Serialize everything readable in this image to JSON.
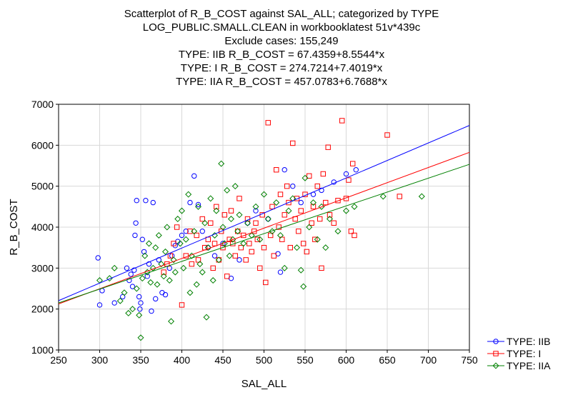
{
  "titles": {
    "line1": "Scatterplot of R_B_COST against SAL_ALL; categorized by TYPE",
    "line2": "LOG_PUBLIC.SMALL.CLEAN in workbooklatest 51v*439c",
    "line3": "Exclude cases: 155,249",
    "line4": "TYPE: IIB R_B_COST = 67.4359+8.5544*x",
    "line5": "TYPE: I R_B_COST = 274.7214+7.4019*x",
    "line6": "TYPE: IIA R_B_COST = 457.0783+6.7688*x"
  },
  "chart_data": {
    "type": "scatter",
    "xlabel": "SAL_ALL",
    "ylabel": "R_B_COST",
    "xlim": [
      250,
      750
    ],
    "ylim": [
      1000,
      7000
    ],
    "xticks": [
      "250",
      "300",
      "350",
      "400",
      "450",
      "500",
      "550",
      "600",
      "650",
      "700",
      "750"
    ],
    "yticks": [
      "1000",
      "2000",
      "3000",
      "4000",
      "5000",
      "6000",
      "7000"
    ],
    "grid": true,
    "legend_position": "bottom-right",
    "series": [
      {
        "name": "TYPE: IIB",
        "color": "#0000ff",
        "marker": "circle",
        "fit": {
          "intercept": 67.4359,
          "slope": 8.5544
        },
        "points": [
          [
            298,
            3250
          ],
          [
            300,
            2100
          ],
          [
            303,
            2450
          ],
          [
            318,
            2150
          ],
          [
            328,
            2300
          ],
          [
            333,
            3000
          ],
          [
            336,
            2700
          ],
          [
            338,
            2850
          ],
          [
            340,
            2550
          ],
          [
            342,
            2950
          ],
          [
            343,
            3800
          ],
          [
            344,
            4100
          ],
          [
            345,
            4650
          ],
          [
            348,
            2300
          ],
          [
            349,
            2000
          ],
          [
            350,
            2150
          ],
          [
            352,
            3700
          ],
          [
            354,
            3400
          ],
          [
            356,
            4650
          ],
          [
            358,
            2800
          ],
          [
            360,
            3100
          ],
          [
            363,
            1950
          ],
          [
            365,
            4600
          ],
          [
            368,
            2250
          ],
          [
            372,
            3200
          ],
          [
            376,
            2400
          ],
          [
            380,
            2350
          ],
          [
            385,
            3000
          ],
          [
            388,
            3300
          ],
          [
            392,
            3550
          ],
          [
            395,
            3650
          ],
          [
            400,
            3800
          ],
          [
            405,
            3900
          ],
          [
            410,
            4600
          ],
          [
            415,
            5250
          ],
          [
            420,
            4550
          ],
          [
            425,
            3900
          ],
          [
            432,
            3500
          ],
          [
            440,
            3300
          ],
          [
            450,
            3600
          ],
          [
            460,
            2750
          ],
          [
            470,
            3200
          ],
          [
            480,
            4100
          ],
          [
            490,
            4400
          ],
          [
            505,
            4200
          ],
          [
            517,
            3350
          ],
          [
            520,
            2900
          ],
          [
            525,
            5400
          ],
          [
            535,
            5000
          ],
          [
            545,
            4600
          ],
          [
            560,
            4800
          ],
          [
            570,
            4900
          ],
          [
            585,
            5100
          ],
          [
            600,
            5300
          ],
          [
            612,
            5400
          ]
        ]
      },
      {
        "name": "TYPE: I",
        "color": "#ff0000",
        "marker": "square",
        "fit": {
          "intercept": 274.7214,
          "slope": 7.4019
        },
        "points": [
          [
            378,
            2900
          ],
          [
            382,
            3100
          ],
          [
            386,
            3300
          ],
          [
            390,
            3600
          ],
          [
            394,
            4000
          ],
          [
            400,
            2100
          ],
          [
            405,
            3300
          ],
          [
            410,
            3900
          ],
          [
            412,
            3100
          ],
          [
            418,
            3800
          ],
          [
            420,
            3200
          ],
          [
            425,
            4200
          ],
          [
            428,
            3500
          ],
          [
            432,
            3700
          ],
          [
            435,
            4100
          ],
          [
            438,
            3000
          ],
          [
            440,
            3600
          ],
          [
            442,
            4500
          ],
          [
            445,
            3200
          ],
          [
            448,
            3900
          ],
          [
            450,
            3500
          ],
          [
            452,
            4300
          ],
          [
            455,
            2800
          ],
          [
            458,
            3700
          ],
          [
            460,
            4400
          ],
          [
            462,
            3600
          ],
          [
            465,
            3300
          ],
          [
            468,
            3900
          ],
          [
            470,
            4700
          ],
          [
            472,
            3500
          ],
          [
            475,
            3800
          ],
          [
            478,
            3200
          ],
          [
            480,
            4200
          ],
          [
            482,
            3600
          ],
          [
            485,
            3400
          ],
          [
            488,
            3900
          ],
          [
            490,
            4100
          ],
          [
            492,
            3700
          ],
          [
            495,
            3000
          ],
          [
            498,
            4300
          ],
          [
            500,
            3500
          ],
          [
            502,
            2650
          ],
          [
            505,
            6550
          ],
          [
            508,
            3800
          ],
          [
            510,
            4500
          ],
          [
            512,
            3300
          ],
          [
            515,
            5400
          ],
          [
            518,
            4000
          ],
          [
            520,
            4800
          ],
          [
            522,
            3700
          ],
          [
            525,
            4300
          ],
          [
            528,
            5000
          ],
          [
            530,
            4600
          ],
          [
            532,
            3500
          ],
          [
            535,
            6050
          ],
          [
            538,
            4200
          ],
          [
            540,
            4700
          ],
          [
            542,
            3900
          ],
          [
            545,
            4400
          ],
          [
            548,
            3600
          ],
          [
            550,
            4800
          ],
          [
            552,
            3400
          ],
          [
            555,
            5250
          ],
          [
            558,
            4100
          ],
          [
            560,
            4500
          ],
          [
            562,
            3700
          ],
          [
            565,
            5000
          ],
          [
            568,
            4200
          ],
          [
            570,
            3000
          ],
          [
            572,
            5300
          ],
          [
            575,
            4600
          ],
          [
            578,
            5950
          ],
          [
            580,
            4300
          ],
          [
            585,
            4100
          ],
          [
            590,
            4650
          ],
          [
            595,
            6600
          ],
          [
            600,
            4700
          ],
          [
            603,
            5150
          ],
          [
            606,
            3900
          ],
          [
            608,
            5550
          ],
          [
            610,
            3800
          ],
          [
            650,
            6250
          ],
          [
            665,
            4750
          ]
        ]
      },
      {
        "name": "TYPE: IIA",
        "color": "#008000",
        "marker": "diamond",
        "fit": {
          "intercept": 457.0783,
          "slope": 6.7688
        },
        "points": [
          [
            300,
            2700
          ],
          [
            312,
            2750
          ],
          [
            318,
            3000
          ],
          [
            325,
            2200
          ],
          [
            330,
            2400
          ],
          [
            335,
            1900
          ],
          [
            340,
            2000
          ],
          [
            345,
            2500
          ],
          [
            348,
            1850
          ],
          [
            350,
            1300
          ],
          [
            352,
            2750
          ],
          [
            355,
            3300
          ],
          [
            358,
            2900
          ],
          [
            360,
            3600
          ],
          [
            362,
            2650
          ],
          [
            365,
            3000
          ],
          [
            368,
            3500
          ],
          [
            370,
            2600
          ],
          [
            372,
            3800
          ],
          [
            375,
            3100
          ],
          [
            378,
            2800
          ],
          [
            380,
            3400
          ],
          [
            382,
            4000
          ],
          [
            385,
            2700
          ],
          [
            387,
            1700
          ],
          [
            390,
            3200
          ],
          [
            392,
            2900
          ],
          [
            395,
            4200
          ],
          [
            398,
            3600
          ],
          [
            400,
            4400
          ],
          [
            402,
            3000
          ],
          [
            405,
            3700
          ],
          [
            408,
            4800
          ],
          [
            410,
            2400
          ],
          [
            412,
            3300
          ],
          [
            415,
            3900
          ],
          [
            418,
            2600
          ],
          [
            420,
            4500
          ],
          [
            422,
            3100
          ],
          [
            425,
            2900
          ],
          [
            428,
            4100
          ],
          [
            430,
            1800
          ],
          [
            432,
            3500
          ],
          [
            435,
            4700
          ],
          [
            438,
            2700
          ],
          [
            440,
            3800
          ],
          [
            442,
            4400
          ],
          [
            445,
            3200
          ],
          [
            448,
            5550
          ],
          [
            450,
            4000
          ],
          [
            452,
            3600
          ],
          [
            455,
            4900
          ],
          [
            458,
            3300
          ],
          [
            460,
            4200
          ],
          [
            462,
            3700
          ],
          [
            465,
            5000
          ],
          [
            468,
            3900
          ],
          [
            470,
            4300
          ],
          [
            475,
            3600
          ],
          [
            480,
            4100
          ],
          [
            485,
            3800
          ],
          [
            490,
            4500
          ],
          [
            495,
            3700
          ],
          [
            500,
            4800
          ],
          [
            505,
            4200
          ],
          [
            510,
            3900
          ],
          [
            515,
            4600
          ],
          [
            520,
            3800
          ],
          [
            525,
            3000
          ],
          [
            530,
            4400
          ],
          [
            535,
            4700
          ],
          [
            540,
            3500
          ],
          [
            545,
            2950
          ],
          [
            548,
            2550
          ],
          [
            550,
            5200
          ],
          [
            555,
            4000
          ],
          [
            560,
            4600
          ],
          [
            565,
            3700
          ],
          [
            570,
            4500
          ],
          [
            575,
            3500
          ],
          [
            580,
            4200
          ],
          [
            590,
            3900
          ],
          [
            600,
            4400
          ],
          [
            610,
            4500
          ],
          [
            645,
            4750
          ],
          [
            692,
            4750
          ]
        ]
      }
    ]
  }
}
